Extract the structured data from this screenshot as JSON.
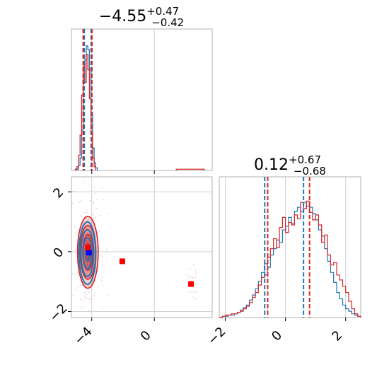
{
  "chart_data": [
    {
      "type": "histogram",
      "panel": "marginal-param-1",
      "title": {
        "base": "−4.55",
        "sup": "+0.47",
        "sub": "−0.42"
      },
      "xlim": [
        -5.3,
        3.7
      ],
      "x_ticks": [
        -4,
        0
      ],
      "grid": true,
      "colors": {
        "blue": "#1f77b4",
        "red": "#d62728"
      },
      "quantiles": {
        "blue": [
          -4.48,
          -4.04
        ],
        "red": [
          -4.55,
          -3.99
        ]
      },
      "series": [
        {
          "color_key": "blue",
          "bin_edges": [
            -4.95,
            -4.85,
            -4.75,
            -4.65,
            -4.55,
            -4.45,
            -4.35,
            -4.25,
            -4.15,
            -4.05,
            -3.95,
            -3.85,
            -3.75,
            -3.65
          ],
          "counts": [
            0.01,
            0.04,
            0.1,
            0.32,
            0.72,
            0.88,
            0.99,
            0.96,
            0.8,
            0.46,
            0.18,
            0.06,
            0.02
          ]
        },
        {
          "color_key": "red",
          "bin_edges": [
            -5.05,
            -4.95,
            -4.85,
            -4.75,
            -4.65,
            -4.55,
            -4.45,
            -4.35,
            -4.25,
            -4.15,
            -4.05,
            -3.95,
            -3.85,
            -3.75
          ],
          "counts": [
            0.01,
            0.03,
            0.12,
            0.28,
            0.6,
            0.84,
            0.7,
            0.92,
            0.8,
            0.57,
            0.3,
            0.1,
            0.03
          ],
          "tail": [
            {
              "x0": 1.4,
              "x1": 3.2,
              "count": 0.01
            }
          ]
        }
      ]
    },
    {
      "type": "scatter-contour",
      "panel": "joint",
      "xlim": [
        -5.3,
        3.7
      ],
      "ylim": [
        -2.2,
        2.5
      ],
      "x_ticks": [
        -4,
        0
      ],
      "y_ticks": [
        2,
        0,
        -2
      ],
      "grid": true,
      "colors": {
        "blue": "#1f77b4",
        "red": "#d62728",
        "blue_marker": "#0000ff",
        "red_marker": "#ff0000"
      },
      "contours": {
        "red": {
          "center": [
            -4.25,
            -0.02
          ],
          "sigma": [
            0.33,
            0.6
          ],
          "levels": [
            0.5,
            1.0,
            1.5,
            2.0
          ]
        },
        "blue": {
          "center": [
            -4.28,
            -0.05
          ],
          "sigma": [
            0.27,
            0.52
          ],
          "levels": [
            0.5,
            1.0,
            1.5,
            2.0
          ]
        }
      },
      "markers": [
        {
          "color_key": "blue_marker",
          "x": -4.18,
          "y": -0.03
        },
        {
          "color_key": "red_marker",
          "x": -4.25,
          "y": 0.14
        },
        {
          "color_key": "red_marker",
          "x": -2.05,
          "y": -0.32
        },
        {
          "color_key": "red_marker",
          "x": 2.35,
          "y": -1.08
        }
      ],
      "outliers_region": {
        "x": [
          2.1,
          2.7
        ],
        "y": [
          -1.6,
          -0.4
        ]
      }
    },
    {
      "type": "histogram",
      "panel": "marginal-param-2",
      "title": {
        "base": "0.12",
        "sup": "+0.67",
        "sub": "−0.68"
      },
      "xlim": [
        -2.2,
        2.5
      ],
      "x_ticks": [
        -2,
        0,
        2
      ],
      "grid": true,
      "colors": {
        "blue": "#1f77b4",
        "red": "#d62728"
      },
      "quantiles": {
        "blue": [
          -0.69,
          0.6
        ],
        "red": [
          -0.59,
          0.8
        ]
      },
      "series": [
        {
          "color_key": "blue",
          "x0": -2.2,
          "bin_width": 0.1,
          "counts": [
            0,
            0.01,
            0.01,
            0.02,
            0.02,
            0.03,
            0.04,
            0.06,
            0.08,
            0.1,
            0.14,
            0.18,
            0.23,
            0.29,
            0.36,
            0.43,
            0.4,
            0.5,
            0.55,
            0.62,
            0.6,
            0.7,
            0.73,
            0.8,
            0.75,
            0.85,
            0.88,
            0.85,
            0.92,
            0.89,
            0.88,
            0.83,
            0.78,
            0.7,
            0.65,
            0.55,
            0.45,
            0.36,
            0.28,
            0.2,
            0.15,
            0.1,
            0.07,
            0.05,
            0.03,
            0.02,
            0.01
          ]
        },
        {
          "color_key": "red",
          "x0": -2.2,
          "bin_width": 0.1,
          "counts": [
            0,
            0.01,
            0.02,
            0.02,
            0.03,
            0.03,
            0.04,
            0.05,
            0.07,
            0.09,
            0.12,
            0.16,
            0.2,
            0.26,
            0.32,
            0.34,
            0.48,
            0.55,
            0.63,
            0.56,
            0.72,
            0.8,
            0.68,
            0.76,
            0.74,
            0.82,
            0.79,
            0.92,
            0.87,
            0.93,
            0.84,
            0.78,
            0.82,
            0.74,
            0.6,
            0.66,
            0.5,
            0.42,
            0.44,
            0.34,
            0.3,
            0.25,
            0.2,
            0.13,
            0.07,
            0.03,
            0.01
          ]
        }
      ]
    }
  ]
}
